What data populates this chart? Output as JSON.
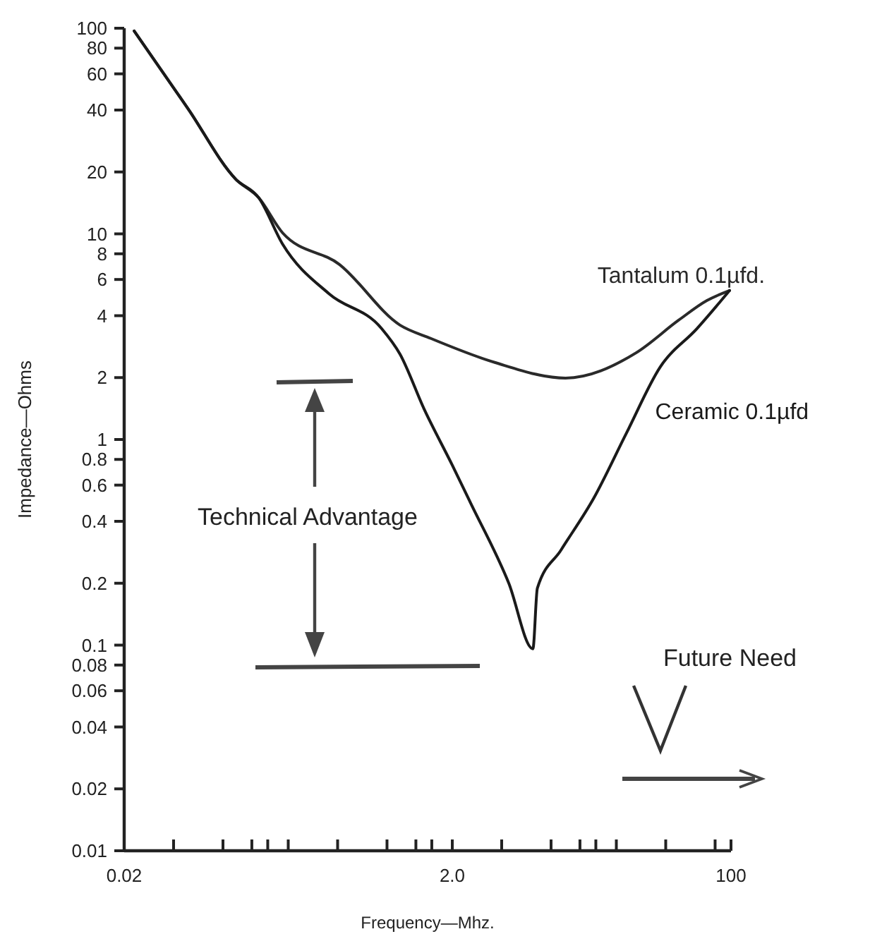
{
  "chart_data": {
    "type": "line",
    "xlabel": "Frequency—Mhz.",
    "ylabel": "Impedance—Ohms",
    "log": "xy",
    "xlim": [
      0.02,
      100
    ],
    "ylim": [
      0.01,
      100
    ],
    "xticks": [
      0.02,
      {
        "value": 0.04,
        "label": null
      },
      {
        "value": 0.08,
        "label": null
      },
      {
        "value": 0.12,
        "label": null
      },
      {
        "value": 0.15,
        "label": null
      },
      {
        "value": 0.2,
        "label": null
      },
      {
        "value": 0.4,
        "label": null
      },
      {
        "value": 0.8,
        "label": null
      },
      {
        "value": 1.2,
        "label": null
      },
      {
        "value": 1.5,
        "label": null
      },
      {
        "value": 2,
        "label": "2.0"
      },
      {
        "value": 4,
        "label": null
      },
      {
        "value": 8,
        "label": null
      },
      {
        "value": 12,
        "label": null
      },
      {
        "value": 15,
        "label": null
      },
      {
        "value": 20,
        "label": null
      },
      {
        "value": 40,
        "label": null
      },
      {
        "value": 80,
        "label": null
      },
      100
    ],
    "yticks": [
      100,
      80,
      60,
      40,
      20,
      10,
      8,
      6,
      4,
      2,
      1,
      0.8,
      0.6,
      0.4,
      0.2,
      0.1,
      0.08,
      0.06,
      0.04,
      0.02,
      0.01
    ],
    "grid": false,
    "legend": false,
    "marker": "none",
    "line_style": "solid",
    "series": [
      {
        "name": "Tantalum 0.1µfd.",
        "color": "#2a2a2a",
        "x": [
          0.023,
          0.049,
          0.096,
          0.132,
          0.185,
          0.41,
          0.96,
          1.48,
          3.63,
          9.8,
          26.4,
          47.9,
          71.3,
          98
        ],
        "values": [
          97,
          40.6,
          18.4,
          15,
          10.1,
          7.1,
          3.6,
          3.1,
          2.37,
          1.99,
          2.64,
          3.8,
          4.74,
          5.3
        ]
      },
      {
        "name": "Ceramic 0.1µfd",
        "color": "#1a1a1a",
        "x": [
          0.023,
          0.049,
          0.096,
          0.132,
          0.185,
          0.356,
          0.74,
          0.96,
          1.35,
          2.0,
          2.59,
          4.42,
          6.2,
          6.6,
          9.2,
          14.6,
          23,
          37,
          62,
          98
        ],
        "values": [
          97,
          40.6,
          18.4,
          15,
          8.9,
          5.1,
          3.47,
          2.6,
          1.4,
          0.75,
          0.49,
          0.2,
          0.096,
          0.189,
          0.29,
          0.52,
          1.07,
          2.25,
          3.46,
          5.3
        ]
      }
    ],
    "annotations": [
      "Technical Advantage",
      "Future Need"
    ]
  }
}
